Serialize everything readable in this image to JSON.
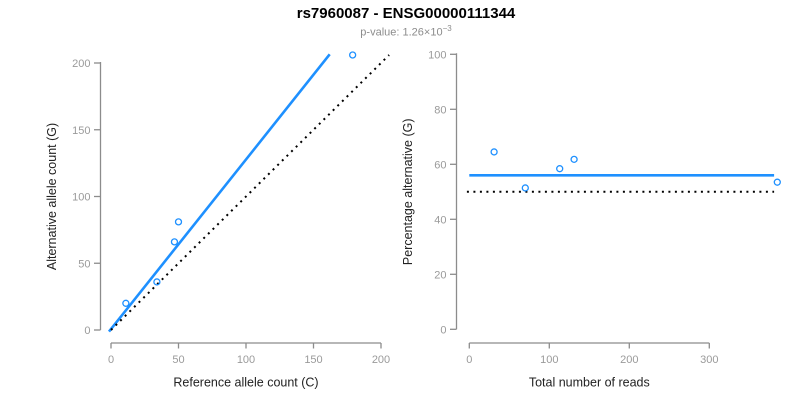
{
  "header": {
    "title": "rs7960087 - ENSG00000111344",
    "subtitle_prefix": "p-value: 1.26×10",
    "subtitle_exponent": "−3"
  },
  "colors": {
    "accent_blue": "#1E90FF",
    "identity_black": "#000000",
    "axis_gray": "#8c8c8c",
    "tick_label_gray": "#9a9a9a",
    "axis_title_color": "#222222",
    "subtitle_gray": "#8c8c8c"
  },
  "chart_data": [
    {
      "type": "scatter",
      "name": "allele-counts-plot",
      "xlabel": "Reference allele count (C)",
      "ylabel": "Alternative allele count (G)",
      "xlim": [
        0,
        200
      ],
      "ylim": [
        0,
        207
      ],
      "xticks": [
        0,
        50,
        100,
        150,
        200
      ],
      "yticks": [
        0,
        50,
        100,
        150,
        200
      ],
      "grid": false,
      "points": [
        [
          11,
          20
        ],
        [
          34,
          36
        ],
        [
          47,
          66
        ],
        [
          50,
          81
        ],
        [
          179,
          206
        ]
      ],
      "lines": [
        {
          "name": "fit-line",
          "style": "solid",
          "color_key": "accent_blue",
          "from": [
            -1.5,
            -1.2
          ],
          "to": [
            162,
            206.5
          ]
        },
        {
          "name": "identity-line",
          "style": "dotted",
          "color_key": "identity_black",
          "from": [
            0,
            0
          ],
          "to": [
            206,
            206
          ]
        }
      ]
    },
    {
      "type": "scatter",
      "name": "percentage-plot",
      "xlabel": "Total number of reads",
      "ylabel": "Percentage alternative (G)",
      "xlim": [
        0,
        385
      ],
      "ylim": [
        0,
        100
      ],
      "xticks": [
        0,
        100,
        200,
        300
      ],
      "yticks": [
        0,
        20,
        40,
        60,
        80,
        100
      ],
      "grid": false,
      "points": [
        [
          31,
          64.5
        ],
        [
          70,
          51.4
        ],
        [
          113,
          58.4
        ],
        [
          131,
          61.8
        ],
        [
          385,
          53.5
        ]
      ],
      "lines": [
        {
          "name": "mean-line",
          "style": "solid",
          "color_key": "accent_blue",
          "from": [
            0,
            56
          ],
          "to": [
            381,
            56
          ]
        },
        {
          "name": "expected-line",
          "style": "dotted",
          "color_key": "identity_black",
          "from": [
            -3,
            50
          ],
          "to": [
            381,
            50
          ]
        }
      ]
    }
  ]
}
